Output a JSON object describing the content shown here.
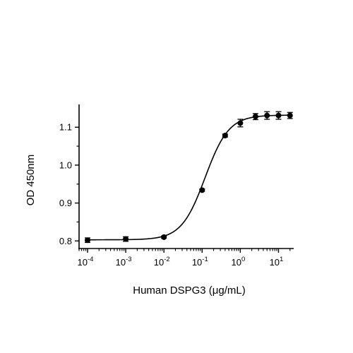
{
  "chart_data": {
    "type": "scatter",
    "title": "",
    "xlabel": "Human DSPG3 (μg/mL)",
    "ylabel": "OD 450nm",
    "xscale": "log",
    "xlim": [
      6e-05,
      25
    ],
    "ylim": [
      0.78,
      1.16
    ],
    "grid": false,
    "legend": "none",
    "colors": {
      "marker": "#000000",
      "line": "#000000",
      "axis": "#000000"
    },
    "x_ticks": [
      {
        "value": 0.0001,
        "base": "10",
        "exp": "-4"
      },
      {
        "value": 0.001,
        "base": "10",
        "exp": "-3"
      },
      {
        "value": 0.01,
        "base": "10",
        "exp": "-2"
      },
      {
        "value": 0.1,
        "base": "10",
        "exp": "-1"
      },
      {
        "value": 1,
        "base": "10",
        "exp": "0"
      },
      {
        "value": 10,
        "base": "10",
        "exp": "1"
      }
    ],
    "y_ticks": [
      {
        "value": 0.8,
        "label": "0.8"
      },
      {
        "value": 0.9,
        "label": "0.9"
      },
      {
        "value": 1.0,
        "label": "1.0"
      },
      {
        "value": 1.1,
        "label": "1.1"
      }
    ],
    "series": [
      {
        "points": [
          {
            "x": 0.0001,
            "y": 0.802,
            "err": 0.006
          },
          {
            "x": 0.001,
            "y": 0.805,
            "err": 0.006
          },
          {
            "x": 0.01,
            "y": 0.81,
            "err": 0.003
          },
          {
            "x": 0.1,
            "y": 0.934,
            "err": 0.003
          },
          {
            "x": 0.4,
            "y": 1.078,
            "err": 0.004
          },
          {
            "x": 1.0,
            "y": 1.111,
            "err": 0.01
          },
          {
            "x": 2.5,
            "y": 1.128,
            "err": 0.008
          },
          {
            "x": 5.0,
            "y": 1.131,
            "err": 0.01
          },
          {
            "x": 10.0,
            "y": 1.131,
            "err": 0.01
          },
          {
            "x": 20.0,
            "y": 1.131,
            "err": 0.008
          }
        ],
        "fit": {
          "model": "4PL",
          "bottom": 0.803,
          "top": 1.132,
          "ec50": 0.12,
          "hill": 1.4
        }
      }
    ]
  }
}
